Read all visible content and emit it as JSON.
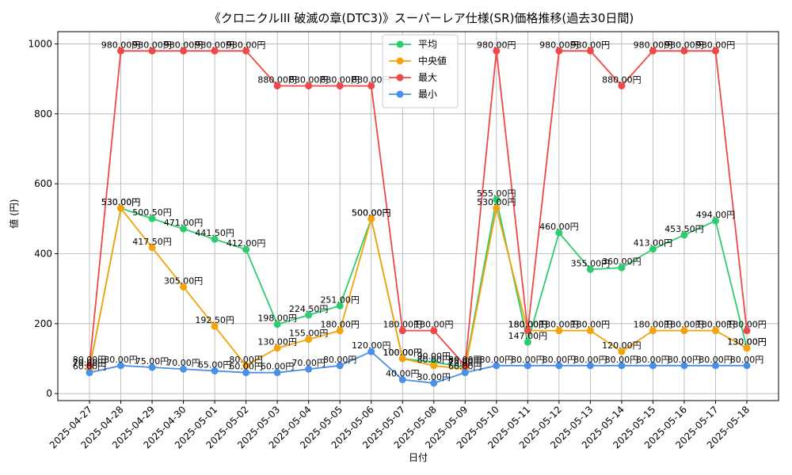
{
  "chart_data": {
    "type": "line",
    "title": "《クロニクルIII 破滅の章(DTC3)》スーパーレア仕様(SR)価格推移(過去30日間)",
    "xlabel": "日付",
    "ylabel": "値 (円)",
    "ylim": [
      -20,
      1035
    ],
    "yticks": [
      0,
      200,
      400,
      600,
      800,
      1000
    ],
    "grid": true,
    "legend_position": "top-center",
    "label_suffix": "円",
    "categories": [
      "2025-04-27",
      "2025-04-28",
      "2025-04-29",
      "2025-04-30",
      "2025-05-01",
      "2025-05-02",
      "2025-05-03",
      "2025-05-04",
      "2025-05-05",
      "2025-05-06",
      "2025-05-07",
      "2025-05-08",
      "2025-05-09",
      "2025-05-10",
      "2025-05-11",
      "2025-05-12",
      "2025-05-13",
      "2025-05-14",
      "2025-05-15",
      "2025-05-16",
      "2025-05-17",
      "2025-05-18"
    ],
    "series": [
      {
        "name": "平均",
        "color": "#2ecc71",
        "values": [
          70,
          530,
          500.5,
          471,
          441.5,
          412,
          198,
          224.5,
          251,
          500,
          100,
          90,
          75,
          555,
          147,
          460,
          355,
          360,
          413,
          453.5,
          494,
          130
        ]
      },
      {
        "name": "中央値",
        "color": "#f5a30a",
        "values": [
          70,
          530,
          417.5,
          305,
          192.5,
          80,
          130,
          155,
          180,
          500,
          100,
          80,
          70,
          530,
          180,
          180,
          180,
          120,
          180,
          180,
          180,
          130
        ]
      },
      {
        "name": "最大",
        "color": "#f04848",
        "values": [
          80,
          980,
          980,
          980,
          980,
          980,
          880,
          880,
          880,
          880,
          180,
          180,
          80,
          980,
          180,
          980,
          980,
          880,
          980,
          980,
          980,
          180
        ]
      },
      {
        "name": "最小",
        "color": "#4a90e8",
        "values": [
          60,
          80,
          75,
          70,
          65,
          60,
          60,
          70,
          80,
          120,
          40,
          30,
          60,
          80,
          80,
          80,
          80,
          80,
          80,
          80,
          80,
          80
        ]
      }
    ]
  }
}
